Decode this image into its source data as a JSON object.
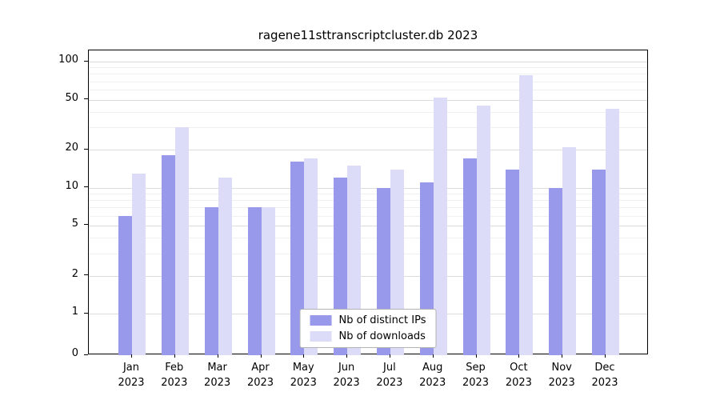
{
  "title": "ragene11sttranscriptcluster.db 2023",
  "chart_data": {
    "type": "bar",
    "title": "ragene11sttranscriptcluster.db 2023",
    "xlabel": "",
    "ylabel": "",
    "scale": "symlog",
    "grid": true,
    "legend_position": "bottom-center",
    "year": "2023",
    "categories": [
      "Jan",
      "Feb",
      "Mar",
      "Apr",
      "May",
      "Jun",
      "Jul",
      "Aug",
      "Sep",
      "Oct",
      "Nov",
      "Dec"
    ],
    "series": [
      {
        "name": "Nb of distinct IPs",
        "color": "#9999ec",
        "values": [
          6,
          18,
          7,
          7,
          16,
          12,
          10,
          11,
          17,
          14,
          10,
          14
        ]
      },
      {
        "name": "Nb of downloads",
        "color": "#dcdcf8",
        "values": [
          13,
          30,
          12,
          7,
          17,
          15,
          14,
          52,
          45,
          78,
          21,
          42
        ]
      }
    ],
    "yticks": [
      0,
      1,
      2,
      5,
      10,
      20,
      50,
      100
    ],
    "minor_gridlines": [
      3,
      4,
      6,
      7,
      8,
      9,
      30,
      40,
      60,
      70,
      80,
      90
    ],
    "ylim": [
      0,
      100
    ]
  }
}
